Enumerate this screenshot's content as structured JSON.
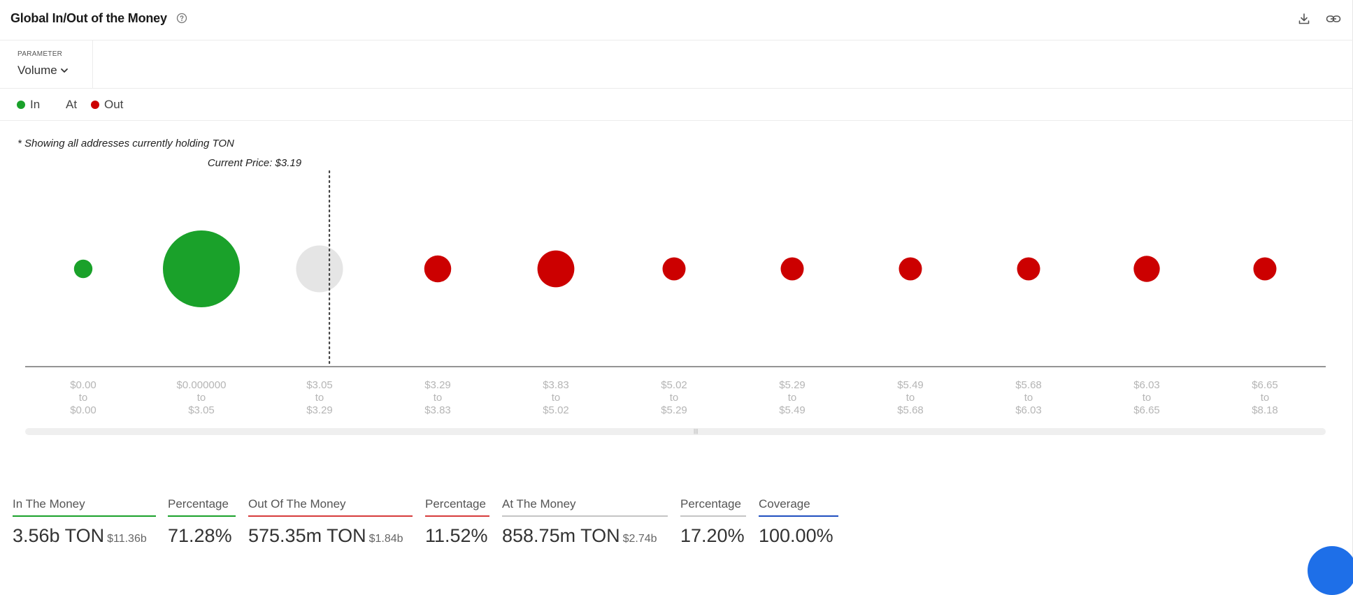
{
  "header": {
    "title": "Global In/Out of the Money"
  },
  "parameter": {
    "label": "PARAMETER",
    "value": "Volume"
  },
  "legend": {
    "items": [
      {
        "label": "In",
        "color": "#1aa12a"
      },
      {
        "label": "At",
        "color": ""
      },
      {
        "label": "Out",
        "color": "#cc0000"
      }
    ]
  },
  "note": "* Showing all addresses currently holding TON",
  "chart_data": {
    "type": "scatter",
    "subtype": "bubble",
    "current_price_label": "Current Price: $3.19",
    "current_price": 3.19,
    "categories": [
      {
        "range": [
          "$0.00",
          "to",
          "$0.00"
        ],
        "status": "in",
        "relative_size": 0.24
      },
      {
        "range": [
          "$0.000000",
          "to",
          "$3.05"
        ],
        "status": "in",
        "relative_size": 1.0
      },
      {
        "range": [
          "$3.05",
          "to",
          "$3.29"
        ],
        "status": "at",
        "relative_size": 0.61
      },
      {
        "range": [
          "$3.29",
          "to",
          "$3.83"
        ],
        "status": "out",
        "relative_size": 0.35
      },
      {
        "range": [
          "$3.83",
          "to",
          "$5.02"
        ],
        "status": "out",
        "relative_size": 0.48
      },
      {
        "range": [
          "$5.02",
          "to",
          "$5.29"
        ],
        "status": "out",
        "relative_size": 0.3
      },
      {
        "range": [
          "$5.29",
          "to",
          "$5.49"
        ],
        "status": "out",
        "relative_size": 0.3
      },
      {
        "range": [
          "$5.49",
          "to",
          "$5.68"
        ],
        "status": "out",
        "relative_size": 0.3
      },
      {
        "range": [
          "$5.68",
          "to",
          "$6.03"
        ],
        "status": "out",
        "relative_size": 0.3
      },
      {
        "range": [
          "$6.03",
          "to",
          "$6.65"
        ],
        "status": "out",
        "relative_size": 0.34
      },
      {
        "range": [
          "$6.65",
          "to",
          "$8.18"
        ],
        "status": "out",
        "relative_size": 0.3
      }
    ],
    "colors": {
      "in": "#1aa12a",
      "at": "#e5e5e5",
      "out": "#cc0000"
    }
  },
  "stats": [
    {
      "label": "In The Money",
      "value": "3.56b TON",
      "sub": "$11.36b",
      "color": "#1aa12a"
    },
    {
      "label": "Percentage",
      "value": "71.28%",
      "sub": "",
      "color": "#1aa12a"
    },
    {
      "label": "Out Of The Money",
      "value": "575.35m TON",
      "sub": "$1.84b",
      "color": "#d63b3b"
    },
    {
      "label": "Percentage",
      "value": "11.52%",
      "sub": "",
      "color": "#d63b3b"
    },
    {
      "label": "At The Money",
      "value": "858.75m TON",
      "sub": "$2.74b",
      "color": "#c4c4c4"
    },
    {
      "label": "Percentage",
      "value": "17.20%",
      "sub": "",
      "color": "#c4c4c4"
    },
    {
      "label": "Coverage",
      "value": "100.00%",
      "sub": "",
      "color": "#1f4fbf"
    }
  ]
}
